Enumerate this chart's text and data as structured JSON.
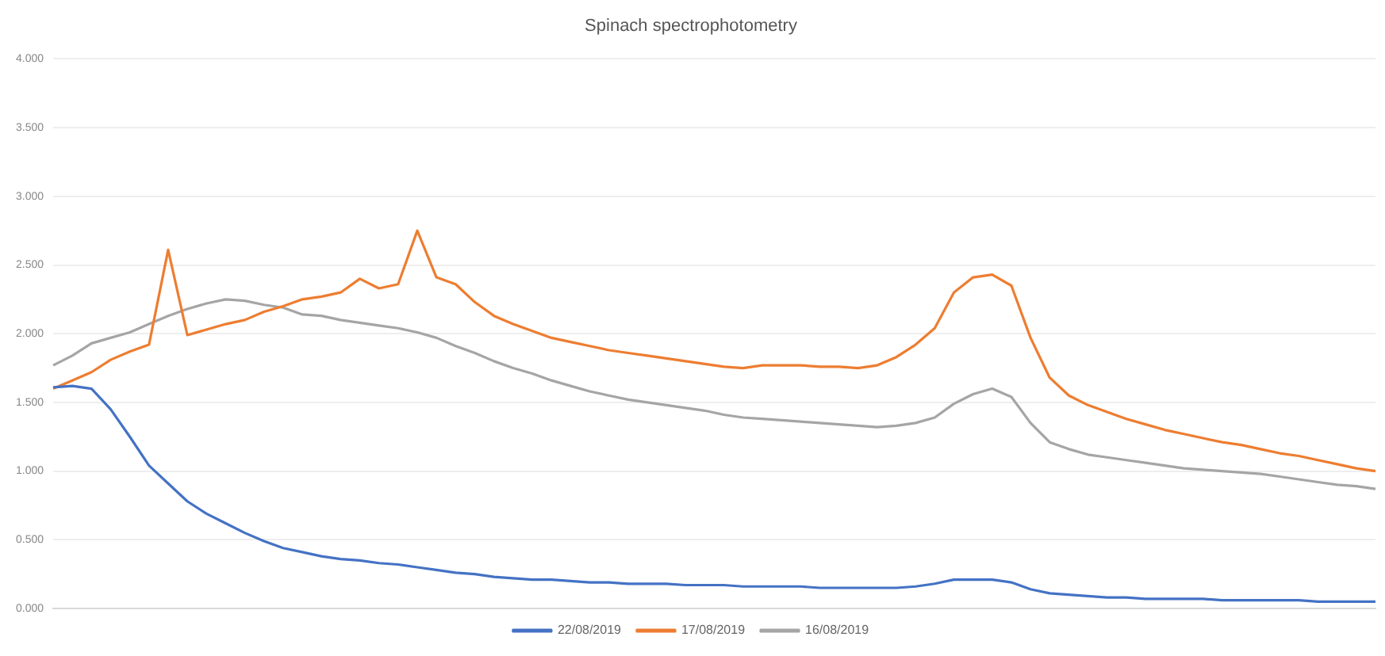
{
  "chart_data": {
    "type": "line",
    "title": "Spinach spectrophotometry",
    "categories": [
      null,
      null,
      null,
      null,
      null,
      null,
      null,
      null,
      null,
      null,
      null,
      null,
      null,
      null,
      null,
      null,
      null,
      null,
      null,
      null,
      null,
      null,
      null,
      null,
      null,
      null,
      null,
      null,
      null,
      null,
      null,
      null,
      null,
      null,
      null,
      null,
      null,
      null,
      null,
      null,
      null,
      null,
      null,
      null,
      null,
      null,
      null,
      null,
      null,
      null,
      null,
      null,
      null,
      null,
      null,
      null,
      null,
      null,
      null,
      null,
      null,
      null,
      null,
      null,
      null,
      null,
      null,
      null,
      null,
      null
    ],
    "series": [
      {
        "name": "22/08/2019",
        "color": "#4472c4",
        "values": [
          1.61,
          1.62,
          1.6,
          1.45,
          1.25,
          1.04,
          0.91,
          0.78,
          0.69,
          0.62,
          0.55,
          0.49,
          0.44,
          0.41,
          0.38,
          0.36,
          0.35,
          0.33,
          0.32,
          0.3,
          0.28,
          0.26,
          0.25,
          0.23,
          0.22,
          0.21,
          0.21,
          0.2,
          0.19,
          0.19,
          0.18,
          0.18,
          0.18,
          0.17,
          0.17,
          0.17,
          0.16,
          0.16,
          0.16,
          0.16,
          0.15,
          0.15,
          0.15,
          0.15,
          0.15,
          0.16,
          0.18,
          0.21,
          0.21,
          0.21,
          0.19,
          0.14,
          0.11,
          0.1,
          0.09,
          0.08,
          0.08,
          0.07,
          0.07,
          0.07,
          0.07,
          0.06,
          0.06,
          0.06,
          0.06,
          0.06,
          0.05,
          0.05,
          0.05,
          0.05
        ]
      },
      {
        "name": "17/08/2019",
        "color": "#ed7d31",
        "values": [
          1.6,
          1.66,
          1.72,
          1.81,
          1.87,
          1.92,
          2.61,
          1.99,
          2.03,
          2.07,
          2.1,
          2.16,
          2.2,
          2.25,
          2.27,
          2.3,
          2.4,
          2.33,
          2.36,
          2.75,
          2.41,
          2.36,
          2.23,
          2.13,
          2.07,
          2.02,
          1.97,
          1.94,
          1.91,
          1.88,
          1.86,
          1.84,
          1.82,
          1.8,
          1.78,
          1.76,
          1.75,
          1.77,
          1.77,
          1.77,
          1.76,
          1.76,
          1.75,
          1.77,
          1.83,
          1.92,
          2.04,
          2.3,
          2.41,
          2.43,
          2.35,
          1.97,
          1.68,
          1.55,
          1.48,
          1.43,
          1.38,
          1.34,
          1.3,
          1.27,
          1.24,
          1.21,
          1.19,
          1.16,
          1.13,
          1.11,
          1.08,
          1.05,
          1.02,
          1.0
        ]
      },
      {
        "name": "16/08/2019",
        "color": "#a5a5a5",
        "values": [
          1.77,
          1.84,
          1.93,
          1.97,
          2.01,
          2.07,
          2.13,
          2.18,
          2.22,
          2.25,
          2.24,
          2.21,
          2.19,
          2.14,
          2.13,
          2.1,
          2.08,
          2.06,
          2.04,
          2.01,
          1.97,
          1.91,
          1.86,
          1.8,
          1.75,
          1.71,
          1.66,
          1.62,
          1.58,
          1.55,
          1.52,
          1.5,
          1.48,
          1.46,
          1.44,
          1.41,
          1.39,
          1.38,
          1.37,
          1.36,
          1.35,
          1.34,
          1.33,
          1.32,
          1.33,
          1.35,
          1.39,
          1.49,
          1.56,
          1.6,
          1.54,
          1.35,
          1.21,
          1.16,
          1.12,
          1.1,
          1.08,
          1.06,
          1.04,
          1.02,
          1.01,
          1.0,
          0.99,
          0.98,
          0.96,
          0.94,
          0.92,
          0.9,
          0.89,
          0.87
        ]
      }
    ],
    "ylim": [
      0,
      4
    ],
    "yticks": [
      {
        "value": 0,
        "label": "0.000"
      },
      {
        "value": 0.5,
        "label": "0.500"
      },
      {
        "value": 1,
        "label": "1.000"
      },
      {
        "value": 1.5,
        "label": "1.500"
      },
      {
        "value": 2,
        "label": "2.000"
      },
      {
        "value": 2.5,
        "label": "2.500"
      },
      {
        "value": 3,
        "label": "3.000"
      },
      {
        "value": 3.5,
        "label": "3.500"
      },
      {
        "value": 4,
        "label": "4.000"
      }
    ],
    "grid": "y",
    "legend": "bottom",
    "tick_labels": "y",
    "marker": "none",
    "line_style": "solid"
  }
}
